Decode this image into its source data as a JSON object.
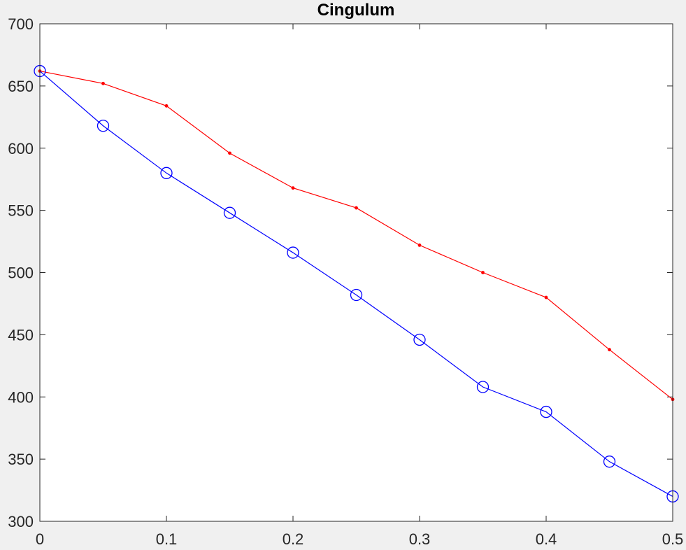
{
  "chart_data": {
    "type": "line",
    "title": "Cingulum",
    "xlabel": "",
    "ylabel": "",
    "xlim": [
      0,
      0.5
    ],
    "ylim": [
      300,
      700
    ],
    "grid": false,
    "legend": "none",
    "x_ticks": [
      "0",
      "0.1",
      "0.2",
      "0.3",
      "0.4",
      "0.5"
    ],
    "y_ticks": [
      "300",
      "350",
      "400",
      "450",
      "500",
      "550",
      "600",
      "650",
      "700"
    ],
    "x": [
      0,
      0.05,
      0.1,
      0.15,
      0.2,
      0.25,
      0.3,
      0.35,
      0.4,
      0.45,
      0.5
    ],
    "series": [
      {
        "values": [
          662,
          652,
          634,
          596,
          568,
          552,
          522,
          500,
          480,
          438,
          398
        ],
        "color": "#ff0000",
        "marker": "dot"
      },
      {
        "values": [
          662,
          618,
          580,
          548,
          516,
          482,
          446,
          408,
          388,
          348,
          320
        ],
        "color": "#0000ff",
        "marker": "circle"
      }
    ]
  }
}
